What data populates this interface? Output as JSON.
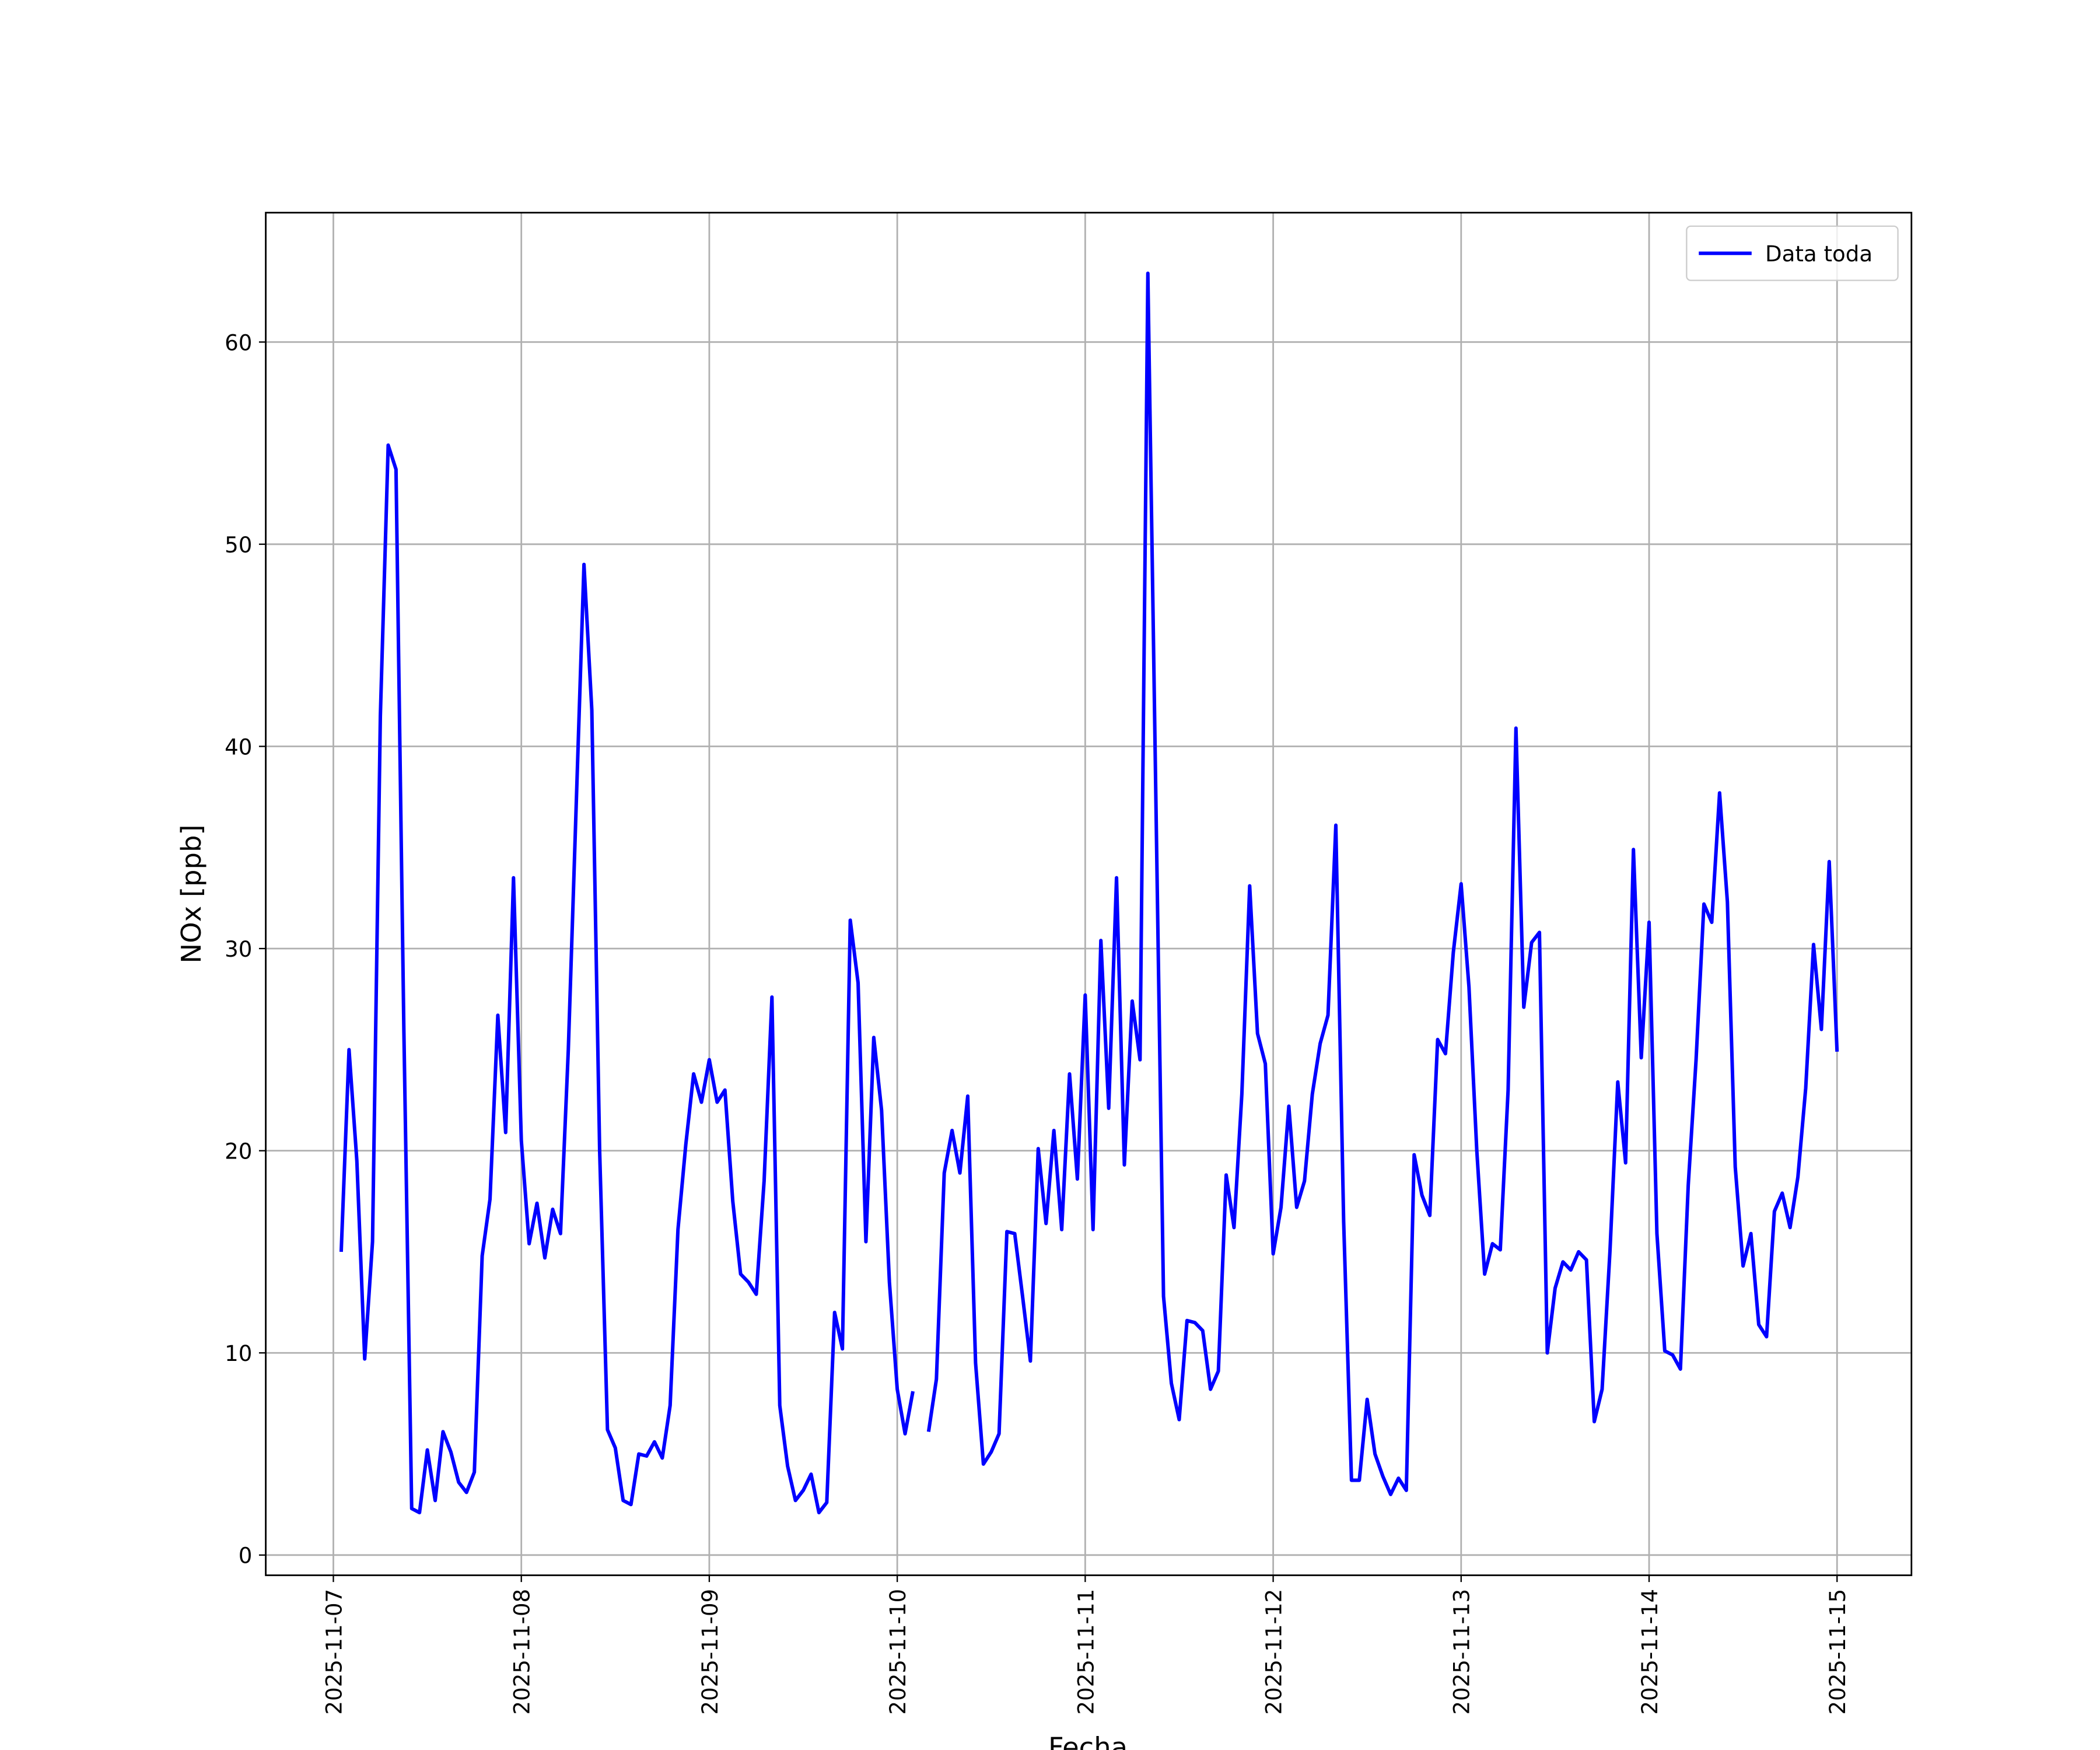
{
  "chart_data": {
    "type": "line",
    "xlabel": "Fecha",
    "ylabel": "NOx [ppb]",
    "xlim": [
      "2025-11-06 15:22",
      "2025-11-15 09:30"
    ],
    "xticks": [
      "2025-11-07",
      "2025-11-08",
      "2025-11-09",
      "2025-11-10",
      "2025-11-11",
      "2025-11-12",
      "2025-11-13",
      "2025-11-14",
      "2025-11-15"
    ],
    "ylim": [
      -1.0,
      66.4
    ],
    "yticks": [
      0,
      10,
      20,
      30,
      40,
      50,
      60
    ],
    "grid": true,
    "legend": "upper right",
    "x": [
      "2025-11-07 01:00",
      "2025-11-07 02:00",
      "2025-11-07 03:00",
      "2025-11-07 04:00",
      "2025-11-07 05:00",
      "2025-11-07 06:00",
      "2025-11-07 07:00",
      "2025-11-07 08:00",
      "2025-11-07 09:00",
      "2025-11-07 10:00",
      "2025-11-07 11:00",
      "2025-11-07 12:00",
      "2025-11-07 13:00",
      "2025-11-07 14:00",
      "2025-11-07 15:00",
      "2025-11-07 16:00",
      "2025-11-07 17:00",
      "2025-11-07 18:00",
      "2025-11-07 19:00",
      "2025-11-07 20:00",
      "2025-11-07 21:00",
      "2025-11-07 22:00",
      "2025-11-07 23:00",
      "2025-11-08 00:00",
      "2025-11-08 01:00",
      "2025-11-08 02:00",
      "2025-11-08 03:00",
      "2025-11-08 04:00",
      "2025-11-08 05:00",
      "2025-11-08 06:00",
      "2025-11-08 07:00",
      "2025-11-08 08:00",
      "2025-11-08 09:00",
      "2025-11-08 10:00",
      "2025-11-08 11:00",
      "2025-11-08 12:00",
      "2025-11-08 13:00",
      "2025-11-08 14:00",
      "2025-11-08 15:00",
      "2025-11-08 16:00",
      "2025-11-08 17:00",
      "2025-11-08 18:00",
      "2025-11-08 19:00",
      "2025-11-08 20:00",
      "2025-11-08 21:00",
      "2025-11-08 22:00",
      "2025-11-08 23:00",
      "2025-11-09 00:00",
      "2025-11-09 01:00",
      "2025-11-09 02:00",
      "2025-11-09 03:00",
      "2025-11-09 04:00",
      "2025-11-09 05:00",
      "2025-11-09 06:00",
      "2025-11-09 07:00",
      "2025-11-09 08:00",
      "2025-11-09 09:00",
      "2025-11-09 10:00",
      "2025-11-09 11:00",
      "2025-11-09 12:00",
      "2025-11-09 13:00",
      "2025-11-09 14:00",
      "2025-11-09 15:00",
      "2025-11-09 16:00",
      "2025-11-09 17:00",
      "2025-11-09 18:00",
      "2025-11-09 19:00",
      "2025-11-09 20:00",
      "2025-11-09 21:00",
      "2025-11-09 22:00",
      "2025-11-09 23:00",
      "2025-11-10 00:00",
      "2025-11-10 01:00",
      "2025-11-10 02:00",
      "2025-11-10 03:00",
      "2025-11-10 04:00",
      "2025-11-10 05:00",
      "2025-11-10 06:00",
      "2025-11-10 07:00",
      "2025-11-10 08:00",
      "2025-11-10 09:00",
      "2025-11-10 10:00",
      "2025-11-10 11:00",
      "2025-11-10 12:00",
      "2025-11-10 13:00",
      "2025-11-10 14:00",
      "2025-11-10 15:00",
      "2025-11-10 16:00",
      "2025-11-10 17:00",
      "2025-11-10 18:00",
      "2025-11-10 19:00",
      "2025-11-10 20:00",
      "2025-11-10 21:00",
      "2025-11-10 22:00",
      "2025-11-10 23:00",
      "2025-11-11 00:00",
      "2025-11-11 01:00",
      "2025-11-11 02:00",
      "2025-11-11 03:00",
      "2025-11-11 04:00",
      "2025-11-11 05:00",
      "2025-11-11 06:00",
      "2025-11-11 07:00",
      "2025-11-11 08:00",
      "2025-11-11 09:00",
      "2025-11-11 10:00",
      "2025-11-11 11:00",
      "2025-11-11 12:00",
      "2025-11-11 13:00",
      "2025-11-11 14:00",
      "2025-11-11 15:00",
      "2025-11-11 16:00",
      "2025-11-11 17:00",
      "2025-11-11 18:00",
      "2025-11-11 19:00",
      "2025-11-11 20:00",
      "2025-11-11 21:00",
      "2025-11-11 22:00",
      "2025-11-11 23:00",
      "2025-11-12 00:00",
      "2025-11-12 01:00",
      "2025-11-12 02:00",
      "2025-11-12 03:00",
      "2025-11-12 04:00",
      "2025-11-12 05:00",
      "2025-11-12 06:00",
      "2025-11-12 07:00",
      "2025-11-12 08:00",
      "2025-11-12 09:00",
      "2025-11-12 10:00",
      "2025-11-12 11:00",
      "2025-11-12 12:00",
      "2025-11-12 13:00",
      "2025-11-12 14:00",
      "2025-11-12 15:00",
      "2025-11-12 16:00",
      "2025-11-12 17:00",
      "2025-11-12 18:00",
      "2025-11-12 19:00",
      "2025-11-12 20:00",
      "2025-11-12 21:00",
      "2025-11-12 22:00",
      "2025-11-12 23:00",
      "2025-11-13 00:00",
      "2025-11-13 01:00",
      "2025-11-13 02:00",
      "2025-11-13 03:00",
      "2025-11-13 04:00",
      "2025-11-13 05:00",
      "2025-11-13 06:00",
      "2025-11-13 07:00",
      "2025-11-13 08:00",
      "2025-11-13 09:00",
      "2025-11-13 10:00",
      "2025-11-13 11:00",
      "2025-11-13 12:00",
      "2025-11-13 13:00",
      "2025-11-13 14:00",
      "2025-11-13 15:00",
      "2025-11-13 16:00",
      "2025-11-13 17:00",
      "2025-11-13 18:00",
      "2025-11-13 19:00",
      "2025-11-13 20:00",
      "2025-11-13 21:00",
      "2025-11-13 22:00",
      "2025-11-13 23:00",
      "2025-11-14 00:00",
      "2025-11-14 01:00",
      "2025-11-14 02:00",
      "2025-11-14 03:00",
      "2025-11-14 04:00",
      "2025-11-14 05:00",
      "2025-11-14 06:00",
      "2025-11-14 07:00",
      "2025-11-14 08:00",
      "2025-11-14 09:00",
      "2025-11-14 10:00",
      "2025-11-14 11:00",
      "2025-11-14 12:00",
      "2025-11-14 13:00",
      "2025-11-14 14:00",
      "2025-11-14 15:00",
      "2025-11-14 16:00",
      "2025-11-14 17:00",
      "2025-11-14 18:00",
      "2025-11-14 19:00",
      "2025-11-14 20:00",
      "2025-11-14 21:00",
      "2025-11-14 22:00",
      "2025-11-14 23:00",
      "2025-11-15 00:00"
    ],
    "series": [
      {
        "name": "Data toda",
        "color": "#0000ff",
        "values": [
          15,
          25,
          19.5,
          9.7,
          15.5,
          41.5,
          54.9,
          53.7,
          26,
          2.3,
          2.1,
          5.2,
          2.7,
          6.1,
          5.1,
          3.6,
          3.1,
          4.1,
          14.8,
          17.6,
          26.7,
          20.9,
          33.5,
          20.5,
          15.4,
          17.4,
          14.7,
          17.1,
          15.9,
          25,
          37,
          49,
          41.8,
          20,
          6.2,
          5.3,
          2.7,
          2.5,
          5.0,
          4.9,
          5.6,
          4.8,
          7.4,
          16.1,
          20.3,
          23.8,
          22.4,
          24.5,
          22.4,
          23.0,
          17.5,
          13.9,
          13.5,
          12.9,
          18.5,
          27.6,
          7.4,
          4.4,
          2.7,
          3.2,
          4.0,
          2.1,
          2.6,
          12.0,
          10.2,
          31.4,
          28.3,
          15.5,
          25.6,
          22,
          13.5,
          8.2,
          6.0,
          8.1,
          null,
          6.1,
          8.7,
          18.9,
          21.0,
          18.9,
          22.7,
          9.5,
          4.5,
          5.1,
          6.0,
          16.0,
          15.9,
          12.8,
          9.6,
          20.1,
          16.4,
          21.0,
          16.1,
          23.8,
          18.6,
          27.7,
          16.1,
          30.4,
          22.1,
          33.5,
          19.3,
          27.4,
          24.5,
          63.4,
          38,
          12.8,
          8.5,
          6.7,
          11.6,
          11.5,
          11.1,
          8.2,
          9.1,
          18.8,
          16.2,
          22.8,
          33.1,
          25.8,
          24.3,
          14.9,
          17.2,
          22.2,
          17.2,
          18.5,
          22.8,
          25.3,
          26.7,
          36.1,
          16.5,
          3.7,
          3.7,
          7.7,
          5.0,
          3.9,
          3.0,
          3.8,
          3.2,
          19.8,
          17.8,
          16.8,
          25.5,
          24.8,
          29.8,
          33.2,
          28.1,
          20,
          13.9,
          15.4,
          15.1,
          23,
          40.9,
          27.1,
          30.3,
          30.8,
          10.0,
          13.2,
          14.5,
          14.1,
          15.0,
          14.6,
          6.6,
          8.2,
          15,
          23.4,
          19.4,
          34.9,
          24.6,
          31.3,
          15.9,
          10.1,
          9.9,
          9.2,
          18.3,
          24.5,
          32.2,
          31.3,
          37.7,
          32.3,
          19.2,
          14.3,
          15.9,
          11.4,
          10.8,
          17.0,
          17.9,
          16.2,
          18.7,
          23.1,
          30.2,
          26.0,
          34.3,
          24.9
        ]
      }
    ]
  }
}
